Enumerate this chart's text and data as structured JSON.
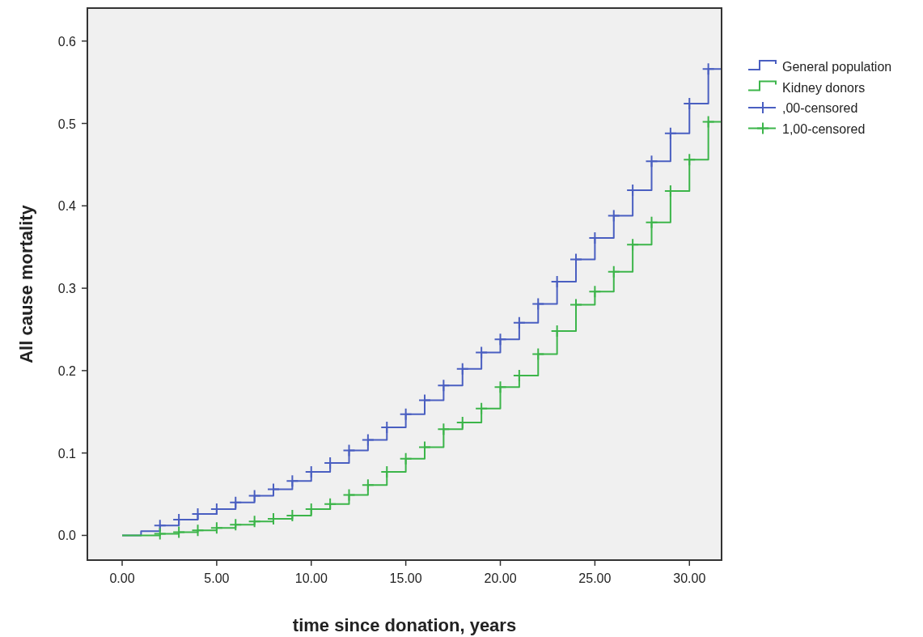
{
  "chart_data": {
    "type": "step",
    "xlabel": "time since donation, years",
    "ylabel": "All cause mortality",
    "xlim": [
      -1.84,
      31.7
    ],
    "ylim": [
      -0.03,
      0.64
    ],
    "xticks": [
      {
        "value": 0,
        "label": "0.00"
      },
      {
        "value": 5,
        "label": "5.00"
      },
      {
        "value": 10,
        "label": "10.00"
      },
      {
        "value": 15,
        "label": "15.00"
      },
      {
        "value": 20,
        "label": "20.00"
      },
      {
        "value": 25,
        "label": "25.00"
      },
      {
        "value": 30,
        "label": "30.00"
      }
    ],
    "yticks": [
      {
        "value": 0,
        "label": "0.0"
      },
      0.1,
      0.2,
      0.3,
      0.4,
      0.5,
      0.6
    ],
    "grid": false,
    "legend": "right",
    "line_style": "solid",
    "series": [
      {
        "name": "General population",
        "color": "#4a5fc1",
        "marker": "none",
        "x": [
          0,
          1,
          2,
          3,
          4,
          5,
          6,
          7,
          8,
          9,
          10,
          11,
          12,
          13,
          14,
          15,
          16,
          17,
          18,
          19,
          20,
          21,
          22,
          23,
          24,
          25,
          26,
          27,
          28,
          29,
          30,
          31,
          31.7
        ],
        "values": [
          0,
          0.005,
          0.012,
          0.019,
          0.026,
          0.032,
          0.04,
          0.048,
          0.056,
          0.066,
          0.077,
          0.088,
          0.103,
          0.116,
          0.131,
          0.147,
          0.164,
          0.182,
          0.202,
          0.222,
          0.238,
          0.258,
          0.281,
          0.308,
          0.335,
          0.361,
          0.388,
          0.419,
          0.454,
          0.488,
          0.524,
          0.566,
          0.566
        ]
      },
      {
        "name": "Kidney donors",
        "color": "#3cb54a",
        "marker": "none",
        "x": [
          0,
          1,
          2,
          3,
          4,
          5,
          6,
          7,
          8,
          9,
          10,
          11,
          12,
          13,
          14,
          15,
          16,
          17,
          18,
          19,
          20,
          21,
          22,
          23,
          24,
          25,
          26,
          27,
          28,
          29,
          30,
          31,
          31.7
        ],
        "values": [
          0,
          0,
          0.002,
          0.004,
          0.006,
          0.009,
          0.013,
          0.017,
          0.02,
          0.024,
          0.032,
          0.038,
          0.049,
          0.061,
          0.077,
          0.093,
          0.107,
          0.129,
          0.137,
          0.154,
          0.18,
          0.194,
          0.22,
          0.248,
          0.28,
          0.296,
          0.32,
          0.353,
          0.38,
          0.418,
          0.456,
          0.502,
          0.502
        ]
      },
      {
        "name": ",00-censored",
        "type": "scatter",
        "color": "#4a5fc1",
        "marker": "cross",
        "x": [
          2,
          3,
          4,
          5,
          6,
          7,
          8,
          9,
          10,
          11,
          12,
          13,
          14,
          15,
          16,
          17,
          18,
          19,
          20,
          21,
          22,
          23,
          24,
          25,
          26,
          27,
          28,
          29,
          30,
          31
        ],
        "values": [
          0.012,
          0.019,
          0.026,
          0.032,
          0.04,
          0.048,
          0.056,
          0.066,
          0.077,
          0.088,
          0.103,
          0.116,
          0.131,
          0.147,
          0.164,
          0.182,
          0.202,
          0.222,
          0.238,
          0.258,
          0.281,
          0.308,
          0.335,
          0.361,
          0.388,
          0.419,
          0.454,
          0.488,
          0.524,
          0.566
        ]
      },
      {
        "name": "1,00-censored",
        "type": "scatter",
        "color": "#3cb54a",
        "marker": "cross",
        "x": [
          2,
          3,
          4,
          5,
          6,
          7,
          8,
          9,
          10,
          11,
          12,
          13,
          14,
          15,
          16,
          17,
          18,
          19,
          20,
          21,
          22,
          23,
          24,
          25,
          26,
          27,
          28,
          29,
          30,
          31
        ],
        "values": [
          0.002,
          0.004,
          0.006,
          0.009,
          0.013,
          0.017,
          0.02,
          0.024,
          0.032,
          0.038,
          0.049,
          0.061,
          0.077,
          0.093,
          0.107,
          0.129,
          0.137,
          0.154,
          0.18,
          0.194,
          0.22,
          0.248,
          0.28,
          0.296,
          0.32,
          0.353,
          0.38,
          0.418,
          0.456,
          0.502
        ]
      }
    ]
  }
}
